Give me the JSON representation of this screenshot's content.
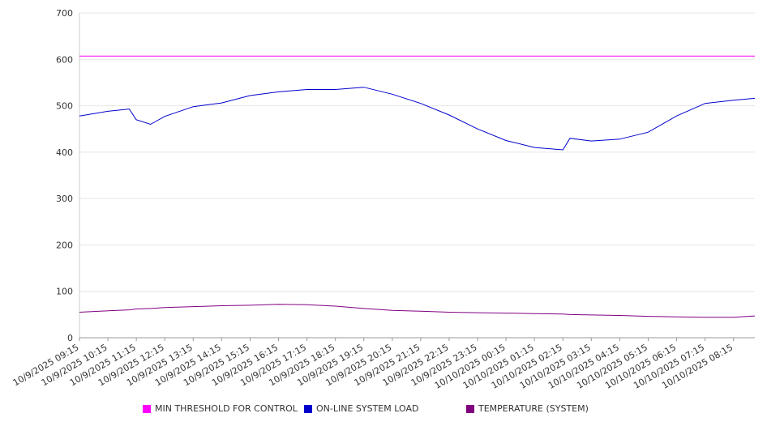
{
  "chart_data": {
    "type": "line",
    "y_ticks": [
      0,
      100,
      200,
      300,
      400,
      500,
      600,
      700
    ],
    "ylim": [
      0,
      700
    ],
    "grid": true,
    "legend_position": "bottom",
    "x_tick_labels": [
      "10/9/2025 09:15",
      "10/9/2025 10:15",
      "10/9/2025 11:15",
      "10/9/2025 12:15",
      "10/9/2025 13:15",
      "10/9/2025 14:15",
      "10/9/2025 15:15",
      "10/9/2025 16:15",
      "10/9/2025 17:15",
      "10/9/2025 18:15",
      "10/9/2025 19:15",
      "10/9/2025 20:15",
      "10/9/2025 21:15",
      "10/9/2025 22:15",
      "10/9/2025 23:15",
      "10/10/2025 00:15",
      "10/10/2025 01:15",
      "10/10/2025 02:15",
      "10/10/2025 03:15",
      "10/10/2025 04:15",
      "10/10/2025 05:15",
      "10/10/2025 06:15",
      "10/10/2025 07:15",
      "10/10/2025 08:15"
    ],
    "x": [
      "10/9/2025 09:15",
      "10/9/2025 10:15",
      "10/9/2025 11:00",
      "10/9/2025 11:15",
      "10/9/2025 11:45",
      "10/9/2025 12:15",
      "10/9/2025 13:15",
      "10/9/2025 14:15",
      "10/9/2025 15:15",
      "10/9/2025 16:15",
      "10/9/2025 17:15",
      "10/9/2025 18:15",
      "10/9/2025 19:15",
      "10/9/2025 20:15",
      "10/9/2025 21:15",
      "10/9/2025 22:15",
      "10/9/2025 23:15",
      "10/10/2025 00:15",
      "10/10/2025 01:15",
      "10/10/2025 02:15",
      "10/10/2025 02:30",
      "10/10/2025 03:15",
      "10/10/2025 04:15",
      "10/10/2025 05:15",
      "10/10/2025 06:15",
      "10/10/2025 07:15",
      "10/10/2025 08:15",
      "10/10/2025 09:00"
    ],
    "series": [
      {
        "name": "MIN THRESHOLD FOR CONTROL",
        "color": "#ff00ff",
        "values": [
          607,
          607,
          607,
          607,
          607,
          607,
          607,
          607,
          607,
          607,
          607,
          607,
          607,
          607,
          607,
          607,
          607,
          607,
          607,
          607,
          607,
          607,
          607,
          607,
          607,
          607,
          607,
          607
        ]
      },
      {
        "name": "ON-LINE SYSTEM LOAD",
        "color": "#0000cc",
        "values": [
          478,
          488,
          493,
          470,
          460,
          477,
          498,
          506,
          522,
          530,
          535,
          535,
          540,
          525,
          505,
          480,
          450,
          425,
          410,
          405,
          430,
          424,
          428,
          443,
          478,
          505,
          512,
          516
        ]
      },
      {
        "name": "TEMPERATURE (SYSTEM)",
        "color": "#800080",
        "values": [
          55,
          58,
          60,
          62,
          63,
          65,
          67,
          69,
          70,
          72,
          71,
          68,
          63,
          59,
          57,
          55,
          54,
          53,
          52,
          51,
          50,
          49,
          48,
          46,
          45,
          44,
          44,
          47
        ]
      }
    ]
  }
}
